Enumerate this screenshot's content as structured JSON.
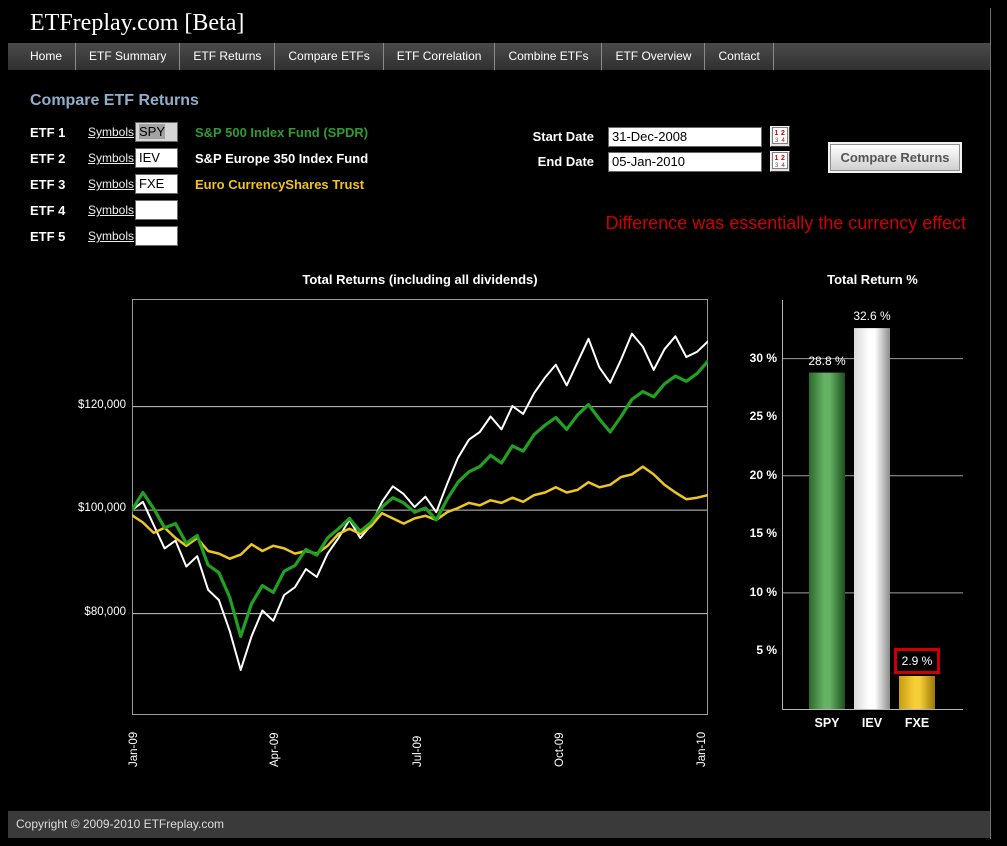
{
  "site": {
    "title": "ETFreplay.com [Beta]"
  },
  "nav": {
    "items": [
      {
        "label": "Home"
      },
      {
        "label": "ETF Summary"
      },
      {
        "label": "ETF Returns"
      },
      {
        "label": "Compare ETFs"
      },
      {
        "label": "ETF Correlation"
      },
      {
        "label": "Combine ETFs"
      },
      {
        "label": "ETF Overview"
      },
      {
        "label": "Contact"
      }
    ]
  },
  "page": {
    "heading": "Compare ETF Returns"
  },
  "etf_form": {
    "rows": [
      {
        "label": "ETF 1",
        "symbols_link": "Symbols",
        "symbol": "SPY",
        "symbol_selected": true,
        "fund_name": "S&P 500 Index Fund (SPDR)",
        "fund_color": "#2E9C2E"
      },
      {
        "label": "ETF 2",
        "symbols_link": "Symbols",
        "symbol": "IEV",
        "symbol_selected": false,
        "fund_name": "S&P Europe 350 Index Fund",
        "fund_color": "#FFFFFF"
      },
      {
        "label": "ETF 3",
        "symbols_link": "Symbols",
        "symbol": "FXE",
        "symbol_selected": false,
        "fund_name": "Euro CurrencyShares Trust",
        "fund_color": "#F2C214"
      },
      {
        "label": "ETF 4",
        "symbols_link": "Symbols",
        "symbol": "",
        "symbol_selected": false,
        "fund_name": "",
        "fund_color": ""
      },
      {
        "label": "ETF 5",
        "symbols_link": "Symbols",
        "symbol": "",
        "symbol_selected": false,
        "fund_name": "",
        "fund_color": ""
      }
    ]
  },
  "dates": {
    "start": {
      "label": "Start Date",
      "value": "31-Dec-2008"
    },
    "end": {
      "label": "End Date",
      "value": "05-Jan-2010"
    }
  },
  "actions": {
    "compare_button": "Compare Returns"
  },
  "annotation": {
    "text": "Difference was essentially the currency effect",
    "color": "#CC0000"
  },
  "footer": {
    "copyright": "Copyright © 2009-2010 ETFreplay.com"
  },
  "chart_data": [
    {
      "type": "line",
      "title": "Total Returns (including all dividends)",
      "units": "value of $100,000 invested, in thousands of USD, weekly points 31-Dec-2008 to 05-Jan-2010",
      "grid": true,
      "ylim": [
        60.4,
        140.8
      ],
      "y_ticks": [
        {
          "label": "$80,000",
          "value": 80
        },
        {
          "label": "$100,000",
          "value": 100
        },
        {
          "label": "$120,000",
          "value": 120
        }
      ],
      "x_total_weeks": 53,
      "x_ticks": [
        {
          "label": "Jan-09",
          "week": 0
        },
        {
          "label": "Apr-09",
          "week": 13
        },
        {
          "label": "Jul-09",
          "week": 26.1
        },
        {
          "label": "Oct-09",
          "week": 39.2
        },
        {
          "label": "Jan-10",
          "week": 52.3
        }
      ],
      "series": [
        {
          "name": "SPY",
          "color": "#22A022",
          "stroke_width": 3.2,
          "values": [
            100,
            103.4,
            100.3,
            96.6,
            97.4,
            93.6,
            95.1,
            89.4,
            87.9,
            83.1,
            75.6,
            81.9,
            85.4,
            84.1,
            88.2,
            89.3,
            92.4,
            91.3,
            94.6,
            96.4,
            98.4,
            95.9,
            97.6,
            100.6,
            102.4,
            101.4,
            99.6,
            100.4,
            98.1,
            102.1,
            105.4,
            107.4,
            108.4,
            110.6,
            109.1,
            112.4,
            111.4,
            114.6,
            116.4,
            117.9,
            115.6,
            118.4,
            120.4,
            117.6,
            115.1,
            118.1,
            121.4,
            122.9,
            121.9,
            124.4,
            125.9,
            124.9,
            126.4,
            128.8
          ]
        },
        {
          "name": "IEV",
          "color": "#FFFFFF",
          "stroke_width": 2,
          "values": [
            100,
            101.6,
            97.1,
            92.6,
            94.1,
            89.1,
            91.1,
            84.6,
            82.6,
            76.6,
            69.1,
            75.6,
            80.6,
            78.6,
            83.6,
            85.1,
            88.6,
            87.1,
            91.6,
            94.6,
            98.1,
            94.6,
            97.1,
            101.6,
            104.6,
            103.1,
            100.6,
            102.6,
            99.6,
            105.1,
            110.1,
            113.6,
            115.1,
            118.1,
            115.6,
            120.1,
            118.6,
            122.6,
            125.6,
            128.1,
            124.1,
            128.6,
            133.1,
            127.6,
            124.6,
            129.1,
            134.1,
            131.6,
            127.1,
            131.1,
            133.6,
            129.6,
            130.6,
            132.6
          ]
        },
        {
          "name": "FXE",
          "color": "#EDC71F",
          "stroke_width": 2.5,
          "values": [
            99,
            97.6,
            95.6,
            96.6,
            94.6,
            93.1,
            94.6,
            92.1,
            91.6,
            90.6,
            91.4,
            93.4,
            92.1,
            93.1,
            92.6,
            91.6,
            92.1,
            91.6,
            93.1,
            95.4,
            96.4,
            95.4,
            96.9,
            99.4,
            98.4,
            97.4,
            98.4,
            98.9,
            98.1,
            99.6,
            100.4,
            101.4,
            100.9,
            101.9,
            101.4,
            102.4,
            101.6,
            102.9,
            103.4,
            104.4,
            103.4,
            103.9,
            105.4,
            104.4,
            104.9,
            106.4,
            106.9,
            108.4,
            106.9,
            104.9,
            103.4,
            102.1,
            102.4,
            102.9
          ]
        }
      ]
    },
    {
      "type": "bar",
      "title": "Total Return %",
      "categories": [
        "SPY",
        "IEV",
        "FXE"
      ],
      "values": [
        28.8,
        32.6,
        2.9
      ],
      "value_labels": [
        "28.8 %",
        "32.6 %",
        "2.9 %"
      ],
      "ylim": [
        0,
        35
      ],
      "y_ticks": [
        {
          "label": "5 %",
          "value": 5
        },
        {
          "label": "10 %",
          "value": 10
        },
        {
          "label": "15 %",
          "value": 15
        },
        {
          "label": "20 %",
          "value": 20
        },
        {
          "label": "25 %",
          "value": 25
        },
        {
          "label": "30 %",
          "value": 30
        }
      ],
      "gridline_values": [
        10,
        20,
        30
      ],
      "bar_colors": [
        {
          "edge": "#2B6B2B",
          "mid": "#66B166",
          "edge2": "#1C4F1C"
        },
        {
          "edge": "#DADADA",
          "mid": "#FFFFFF",
          "edge2": "#8C8C8C"
        },
        {
          "edge": "#C79B10",
          "mid": "#F7CE37",
          "edge2": "#9A7708"
        }
      ],
      "highlight": {
        "category": "FXE",
        "type": "red-box",
        "color": "#CC0000"
      }
    }
  ]
}
